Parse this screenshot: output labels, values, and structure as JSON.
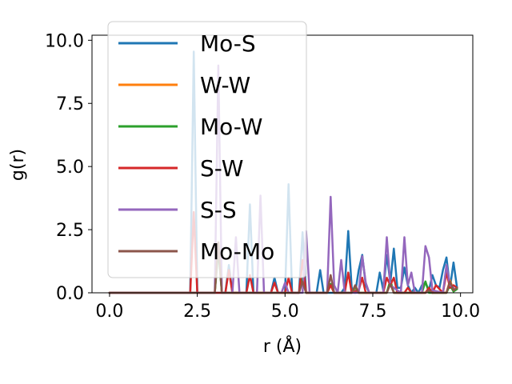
{
  "chart_data": {
    "type": "line",
    "xlabel": "r (Å)",
    "ylabel": "g(r)",
    "xlim": [
      -0.5,
      10.35
    ],
    "ylim": [
      0,
      10.2
    ],
    "xticks": [
      0.0,
      2.5,
      5.0,
      7.5,
      10.0
    ],
    "xtick_labels": [
      "0.0",
      "2.5",
      "5.0",
      "7.5",
      "10.0"
    ],
    "yticks": [
      0.0,
      2.5,
      5.0,
      7.5,
      10.0
    ],
    "ytick_labels": [
      "0.0",
      "2.5",
      "5.0",
      "7.5",
      "10.0"
    ],
    "grid": false,
    "legend_position": "upper-left",
    "series": [
      {
        "name": "Mo-S",
        "color": "#1f77b4",
        "x": [
          0,
          2.3,
          2.4,
          2.5,
          3.3,
          3.4,
          3.5,
          3.9,
          4.0,
          4.1,
          4.6,
          4.7,
          4.8,
          5.0,
          5.1,
          5.2,
          5.4,
          5.5,
          5.6,
          5.9,
          6.0,
          6.1,
          6.6,
          6.7,
          6.8,
          6.9,
          7.0,
          7.1,
          7.2,
          7.3,
          7.4,
          7.6,
          7.7,
          7.8,
          7.9,
          8.0,
          8.1,
          8.2,
          8.3,
          8.4,
          8.5,
          8.6,
          8.7,
          8.8,
          8.9,
          9.0,
          9.1,
          9.2,
          9.3,
          9.4,
          9.5,
          9.6,
          9.7,
          9.8,
          9.9
        ],
        "y": [
          0,
          0,
          9.55,
          0,
          0,
          1.1,
          0,
          0,
          3.5,
          0,
          0,
          0.6,
          0,
          0,
          4.3,
          0,
          0,
          2.4,
          0,
          0,
          0.9,
          0,
          0,
          0.2,
          2.45,
          0.2,
          0,
          0.9,
          1.5,
          0.3,
          0,
          0,
          0.8,
          0.1,
          1.5,
          0.4,
          1.75,
          0.2,
          0.2,
          1.0,
          0.3,
          0,
          0.2,
          0,
          0.3,
          0.4,
          0.1,
          0.7,
          0.3,
          0.2,
          0.9,
          1.4,
          0.2,
          1.2,
          0.2
        ]
      },
      {
        "name": "W-W",
        "color": "#ff7f0e",
        "x": [
          0,
          3.0,
          3.1,
          3.2,
          5.4,
          5.5,
          5.6,
          6.2,
          6.3,
          6.4,
          6.9,
          7.0,
          7.1,
          7.9,
          8.0,
          8.1,
          9.0,
          9.1,
          9.2,
          9.6,
          9.7,
          9.8,
          9.9
        ],
        "y": [
          0,
          0,
          1.9,
          0,
          0,
          0.5,
          0,
          0,
          0.3,
          0,
          0,
          0.2,
          0,
          0,
          0.4,
          0,
          0,
          0.15,
          0,
          0,
          0.5,
          0.1,
          0.2
        ]
      },
      {
        "name": "Mo-W",
        "color": "#2ca02c",
        "x": [
          0,
          3.0,
          3.1,
          3.2,
          5.4,
          5.5,
          5.6,
          6.2,
          6.3,
          6.4,
          6.9,
          7.0,
          7.1,
          7.9,
          8.0,
          8.1,
          8.9,
          9.0,
          9.1,
          9.6,
          9.7,
          9.8,
          9.9
        ],
        "y": [
          0,
          0,
          1.7,
          0,
          0,
          0.6,
          0,
          0,
          0.35,
          0,
          0,
          0.25,
          0,
          0,
          0.5,
          0,
          0,
          0.45,
          0,
          0,
          0.3,
          0.05,
          0.15
        ]
      },
      {
        "name": "S-W",
        "color": "#d62728",
        "x": [
          0,
          2.3,
          2.4,
          2.5,
          3.3,
          3.4,
          3.5,
          3.9,
          4.0,
          4.1,
          4.6,
          4.7,
          4.8,
          5.0,
          5.1,
          5.2,
          5.4,
          5.5,
          5.6,
          6.2,
          6.3,
          6.4,
          6.7,
          6.8,
          6.9,
          7.1,
          7.2,
          7.3,
          7.8,
          7.9,
          8.0,
          8.1,
          8.2,
          8.4,
          8.5,
          8.6,
          9.0,
          9.1,
          9.2,
          9.3,
          9.5,
          9.6,
          9.7,
          9.8,
          9.9
        ],
        "y": [
          0,
          0,
          3.2,
          0,
          0,
          0.9,
          0,
          0,
          0.7,
          0,
          0,
          0.4,
          0,
          0,
          0.6,
          0,
          0,
          1.3,
          0,
          0,
          0.3,
          0,
          0,
          0.8,
          0,
          0.1,
          0.6,
          0,
          0,
          0.6,
          0.3,
          0.6,
          0,
          0,
          0.2,
          0,
          0,
          0.2,
          0,
          0.3,
          0,
          0.8,
          0.2,
          0.3,
          0.2
        ]
      },
      {
        "name": "S-S",
        "color": "#9467bd",
        "x": [
          0,
          3.0,
          3.1,
          3.2,
          3.5,
          3.6,
          3.7,
          4.2,
          4.3,
          4.4,
          4.9,
          5.0,
          5.1,
          5.5,
          5.6,
          5.7,
          6.2,
          6.3,
          6.4,
          6.5,
          6.6,
          6.7,
          7.1,
          7.2,
          7.3,
          7.4,
          7.8,
          7.9,
          8.0,
          8.3,
          8.4,
          8.5,
          8.6,
          8.7,
          8.9,
          9.0,
          9.1,
          9.2,
          9.5,
          9.6,
          9.7,
          9.8
        ],
        "y": [
          0,
          0,
          9.0,
          0,
          0,
          2.2,
          0,
          0,
          3.85,
          0,
          0,
          0.4,
          0,
          0,
          2.45,
          0,
          0,
          3.8,
          0.3,
          0,
          1.3,
          0,
          0,
          1.45,
          0.4,
          0,
          0,
          2.2,
          0.3,
          0,
          2.2,
          0.3,
          0.8,
          0,
          0,
          1.85,
          1.4,
          0.1,
          0,
          1.1,
          0.3,
          0.2
        ]
      },
      {
        "name": "Mo-Mo",
        "color": "#8c564b",
        "x": [
          0,
          3.0,
          3.1,
          3.2,
          5.4,
          5.5,
          5.6,
          6.2,
          6.3,
          6.4,
          6.9,
          7.0,
          7.1,
          7.9,
          8.0,
          8.1,
          9.0,
          9.1,
          9.2,
          9.6,
          9.7,
          9.8,
          9.9
        ],
        "y": [
          0,
          0,
          2.0,
          0,
          0,
          0.45,
          0,
          0,
          0.7,
          0,
          0,
          0.3,
          0,
          0,
          0.35,
          0,
          0,
          0.1,
          0,
          0,
          0.45,
          0.1,
          0.2
        ]
      }
    ]
  }
}
